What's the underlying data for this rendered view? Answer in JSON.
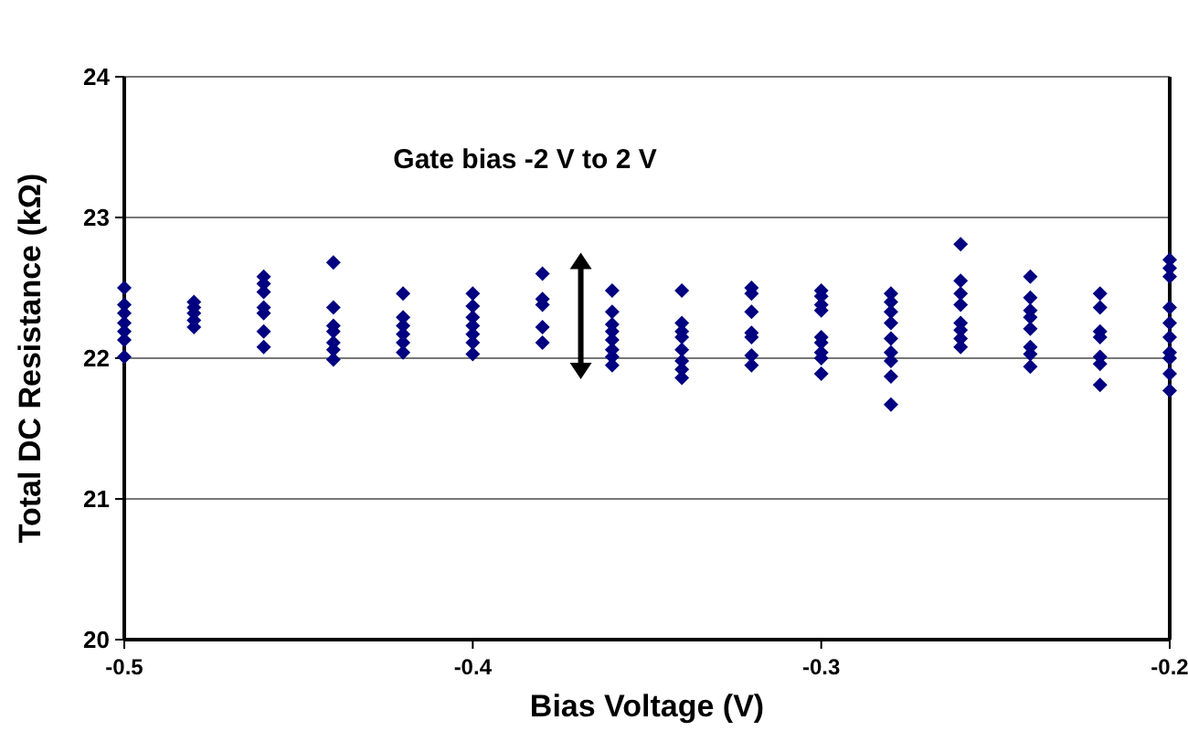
{
  "chart_data": {
    "type": "scatter",
    "xlabel": "Bias Voltage (V)",
    "ylabel": "Total DC Resistance (kΩ)",
    "annotations": [
      "Gate bias -2 V to 2 V"
    ],
    "xlim": [
      -0.5,
      -0.2
    ],
    "xticks": [
      {
        "value": -0.5,
        "label": "-0.5"
      },
      {
        "value": -0.4,
        "label": "-0.4"
      },
      {
        "value": -0.3,
        "label": "-0.3"
      },
      {
        "value": -0.2,
        "label": "-0.2"
      }
    ],
    "ylim": [
      20,
      24
    ],
    "yticks": [
      20,
      21,
      22,
      23,
      24
    ],
    "grid": "y",
    "marker": "diamond",
    "series": [
      {
        "color": "#000080",
        "x": [
          -0.5,
          -0.5,
          -0.5,
          -0.5,
          -0.5,
          -0.5,
          -0.5,
          -0.48,
          -0.48,
          -0.48,
          -0.48,
          -0.48,
          -0.46,
          -0.46,
          -0.46,
          -0.46,
          -0.46,
          -0.46,
          -0.46,
          -0.44,
          -0.44,
          -0.44,
          -0.44,
          -0.44,
          -0.44,
          -0.44,
          -0.42,
          -0.42,
          -0.42,
          -0.42,
          -0.42,
          -0.42,
          -0.4,
          -0.4,
          -0.4,
          -0.4,
          -0.4,
          -0.4,
          -0.4,
          -0.38,
          -0.38,
          -0.38,
          -0.38,
          -0.38,
          -0.36,
          -0.36,
          -0.36,
          -0.36,
          -0.36,
          -0.36,
          -0.36,
          -0.36,
          -0.34,
          -0.34,
          -0.34,
          -0.34,
          -0.34,
          -0.34,
          -0.34,
          -0.34,
          -0.32,
          -0.32,
          -0.32,
          -0.32,
          -0.32,
          -0.32,
          -0.32,
          -0.3,
          -0.3,
          -0.3,
          -0.3,
          -0.3,
          -0.3,
          -0.3,
          -0.3,
          -0.3,
          -0.28,
          -0.28,
          -0.28,
          -0.28,
          -0.28,
          -0.28,
          -0.28,
          -0.28,
          -0.28,
          -0.26,
          -0.26,
          -0.26,
          -0.26,
          -0.26,
          -0.26,
          -0.26,
          -0.26,
          -0.24,
          -0.24,
          -0.24,
          -0.24,
          -0.24,
          -0.24,
          -0.24,
          -0.24,
          -0.22,
          -0.22,
          -0.22,
          -0.22,
          -0.22,
          -0.22,
          -0.22,
          -0.2,
          -0.2,
          -0.2,
          -0.2,
          -0.2,
          -0.2,
          -0.2,
          -0.2,
          -0.2,
          -0.2
        ],
        "values": [
          22.5,
          22.38,
          22.32,
          22.25,
          22.19,
          22.13,
          22.01,
          22.4,
          22.36,
          22.32,
          22.27,
          22.22,
          22.58,
          22.53,
          22.47,
          22.36,
          22.32,
          22.19,
          22.08,
          22.68,
          22.36,
          22.23,
          22.19,
          22.11,
          22.06,
          21.99,
          22.46,
          22.29,
          22.23,
          22.17,
          22.11,
          22.04,
          22.46,
          22.37,
          22.29,
          22.23,
          22.17,
          22.11,
          22.03,
          22.6,
          22.42,
          22.38,
          22.22,
          22.11,
          22.48,
          22.33,
          22.24,
          22.19,
          22.13,
          22.06,
          22.01,
          21.95,
          22.48,
          22.25,
          22.19,
          22.15,
          22.06,
          21.98,
          21.92,
          21.86,
          22.5,
          22.46,
          22.33,
          22.18,
          22.15,
          22.02,
          21.95,
          22.48,
          22.44,
          22.38,
          22.34,
          22.15,
          22.11,
          22.04,
          22.0,
          21.89,
          22.46,
          22.4,
          22.33,
          22.25,
          22.14,
          22.04,
          21.98,
          21.87,
          21.67,
          22.81,
          22.55,
          22.46,
          22.38,
          22.25,
          22.2,
          22.14,
          22.08,
          22.58,
          22.43,
          22.34,
          22.29,
          22.21,
          22.08,
          22.03,
          21.94,
          22.46,
          22.36,
          22.19,
          22.15,
          22.01,
          21.96,
          21.81,
          22.7,
          22.64,
          22.58,
          22.36,
          22.25,
          22.15,
          22.04,
          22.0,
          21.89,
          21.77
        ]
      }
    ]
  }
}
